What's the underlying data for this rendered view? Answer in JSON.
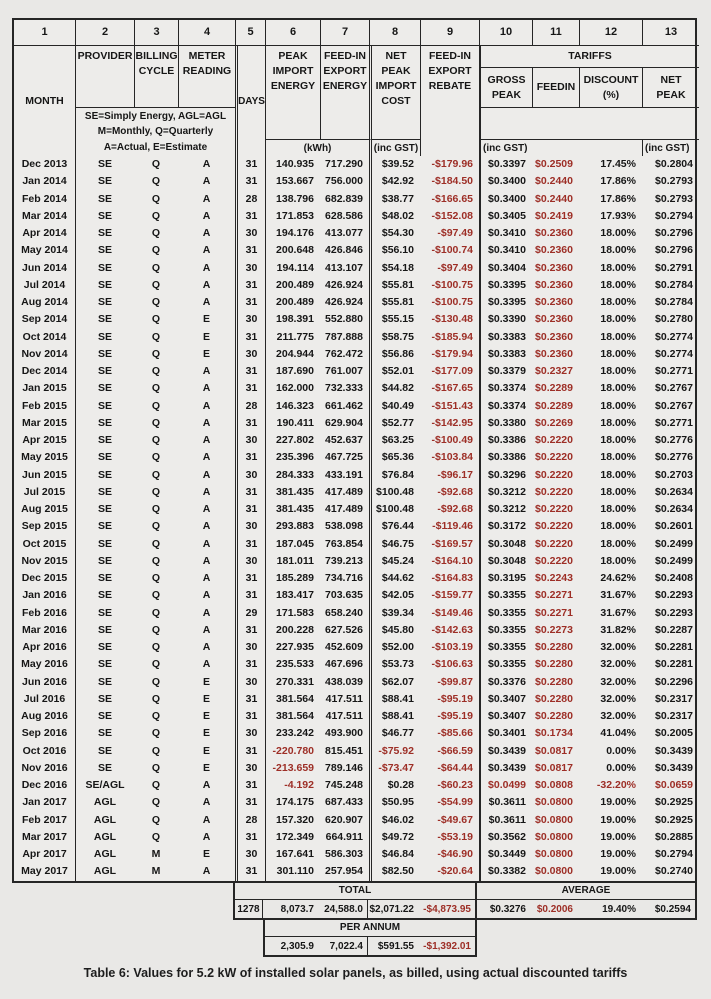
{
  "page": {
    "caption": "Table 6: Values for 5.2 kW of installed solar panels, as billed, using actual discounted tariffs"
  },
  "colors": {
    "red": "#9d2e26",
    "border": "#262626",
    "background": "#e9e8e6"
  },
  "header": {
    "numbers": [
      "1",
      "2",
      "3",
      "4",
      "5",
      "6",
      "7",
      "8",
      "9",
      "10",
      "11",
      "12",
      "13"
    ],
    "month": "MONTH",
    "provider": "PROVIDER",
    "billing_cycle": [
      "BILLING",
      "CYCLE"
    ],
    "meter_reading": [
      "METER",
      "READING"
    ],
    "days": "DAYS",
    "peak_import": [
      "PEAK",
      "IMPORT",
      "ENERGY"
    ],
    "feedin_export": [
      "FEED-IN",
      "EXPORT",
      "ENERGY"
    ],
    "net_cost": [
      "NET",
      "PEAK",
      "IMPORT",
      "COST"
    ],
    "rebate": [
      "FEED-IN",
      "EXPORT",
      "REBATE"
    ],
    "tariffs": "TARIFFS",
    "gross_peak": [
      "GROSS",
      "PEAK"
    ],
    "feedin": "FEEDIN",
    "discount": [
      "DISCOUNT",
      "(%)"
    ],
    "net_peak": [
      "NET",
      "PEAK"
    ],
    "legend": [
      "SE=Simply Energy, AGL=AGL",
      "M=Monthly, Q=Quarterly",
      "A=Actual, E=Estimate"
    ],
    "kwh_unit": "(kWh)",
    "gst_unit_import": "(inc GST)",
    "gst_unit_gross": "(inc GST)",
    "gst_unit_net": "(inc GST)"
  },
  "rows": [
    {
      "month": "Dec 2013",
      "provider": "SE",
      "cycle": "Q",
      "meter": "A",
      "days": "31",
      "import": "140.935",
      "export": "717.290",
      "cost": "$39.52",
      "rebate": "-$179.96",
      "gross": "$0.3397",
      "feedin": "$0.2509",
      "discount": "17.45%",
      "net": "$0.2804"
    },
    {
      "month": "Jan 2014",
      "provider": "SE",
      "cycle": "Q",
      "meter": "A",
      "days": "31",
      "import": "153.667",
      "export": "756.000",
      "cost": "$42.92",
      "rebate": "-$184.50",
      "gross": "$0.3400",
      "feedin": "$0.2440",
      "discount": "17.86%",
      "net": "$0.2793"
    },
    {
      "month": "Feb 2014",
      "provider": "SE",
      "cycle": "Q",
      "meter": "A",
      "days": "28",
      "import": "138.796",
      "export": "682.839",
      "cost": "$38.77",
      "rebate": "-$166.65",
      "gross": "$0.3400",
      "feedin": "$0.2440",
      "discount": "17.86%",
      "net": "$0.2793"
    },
    {
      "month": "Mar 2014",
      "provider": "SE",
      "cycle": "Q",
      "meter": "A",
      "days": "31",
      "import": "171.853",
      "export": "628.586",
      "cost": "$48.02",
      "rebate": "-$152.08",
      "gross": "$0.3405",
      "feedin": "$0.2419",
      "discount": "17.93%",
      "net": "$0.2794"
    },
    {
      "month": "Apr 2014",
      "provider": "SE",
      "cycle": "Q",
      "meter": "A",
      "days": "30",
      "import": "194.176",
      "export": "413.077",
      "cost": "$54.30",
      "rebate": "-$97.49",
      "gross": "$0.3410",
      "feedin": "$0.2360",
      "discount": "18.00%",
      "net": "$0.2796"
    },
    {
      "month": "May 2014",
      "provider": "SE",
      "cycle": "Q",
      "meter": "A",
      "days": "31",
      "import": "200.648",
      "export": "426.846",
      "cost": "$56.10",
      "rebate": "-$100.74",
      "gross": "$0.3410",
      "feedin": "$0.2360",
      "discount": "18.00%",
      "net": "$0.2796"
    },
    {
      "month": "Jun 2014",
      "provider": "SE",
      "cycle": "Q",
      "meter": "A",
      "days": "30",
      "import": "194.114",
      "export": "413.107",
      "cost": "$54.18",
      "rebate": "-$97.49",
      "gross": "$0.3404",
      "feedin": "$0.2360",
      "discount": "18.00%",
      "net": "$0.2791"
    },
    {
      "month": "Jul 2014",
      "provider": "SE",
      "cycle": "Q",
      "meter": "A",
      "days": "31",
      "import": "200.489",
      "export": "426.924",
      "cost": "$55.81",
      "rebate": "-$100.75",
      "gross": "$0.3395",
      "feedin": "$0.2360",
      "discount": "18.00%",
      "net": "$0.2784"
    },
    {
      "month": "Aug 2014",
      "provider": "SE",
      "cycle": "Q",
      "meter": "A",
      "days": "31",
      "import": "200.489",
      "export": "426.924",
      "cost": "$55.81",
      "rebate": "-$100.75",
      "gross": "$0.3395",
      "feedin": "$0.2360",
      "discount": "18.00%",
      "net": "$0.2784"
    },
    {
      "month": "Sep 2014",
      "provider": "SE",
      "cycle": "Q",
      "meter": "E",
      "days": "30",
      "import": "198.391",
      "export": "552.880",
      "cost": "$55.15",
      "rebate": "-$130.48",
      "gross": "$0.3390",
      "feedin": "$0.2360",
      "discount": "18.00%",
      "net": "$0.2780"
    },
    {
      "month": "Oct 2014",
      "provider": "SE",
      "cycle": "Q",
      "meter": "E",
      "days": "31",
      "import": "211.775",
      "export": "787.888",
      "cost": "$58.75",
      "rebate": "-$185.94",
      "gross": "$0.3383",
      "feedin": "$0.2360",
      "discount": "18.00%",
      "net": "$0.2774"
    },
    {
      "month": "Nov 2014",
      "provider": "SE",
      "cycle": "Q",
      "meter": "E",
      "days": "30",
      "import": "204.944",
      "export": "762.472",
      "cost": "$56.86",
      "rebate": "-$179.94",
      "gross": "$0.3383",
      "feedin": "$0.2360",
      "discount": "18.00%",
      "net": "$0.2774"
    },
    {
      "month": "Dec 2014",
      "provider": "SE",
      "cycle": "Q",
      "meter": "A",
      "days": "31",
      "import": "187.690",
      "export": "761.007",
      "cost": "$52.01",
      "rebate": "-$177.09",
      "gross": "$0.3379",
      "feedin": "$0.2327",
      "discount": "18.00%",
      "net": "$0.2771"
    },
    {
      "month": "Jan 2015",
      "provider": "SE",
      "cycle": "Q",
      "meter": "A",
      "days": "31",
      "import": "162.000",
      "export": "732.333",
      "cost": "$44.82",
      "rebate": "-$167.65",
      "gross": "$0.3374",
      "feedin": "$0.2289",
      "discount": "18.00%",
      "net": "$0.2767"
    },
    {
      "month": "Feb 2015",
      "provider": "SE",
      "cycle": "Q",
      "meter": "A",
      "days": "28",
      "import": "146.323",
      "export": "661.462",
      "cost": "$40.49",
      "rebate": "-$151.43",
      "gross": "$0.3374",
      "feedin": "$0.2289",
      "discount": "18.00%",
      "net": "$0.2767"
    },
    {
      "month": "Mar 2015",
      "provider": "SE",
      "cycle": "Q",
      "meter": "A",
      "days": "31",
      "import": "190.411",
      "export": "629.904",
      "cost": "$52.77",
      "rebate": "-$142.95",
      "gross": "$0.3380",
      "feedin": "$0.2269",
      "discount": "18.00%",
      "net": "$0.2771"
    },
    {
      "month": "Apr 2015",
      "provider": "SE",
      "cycle": "Q",
      "meter": "A",
      "days": "30",
      "import": "227.802",
      "export": "452.637",
      "cost": "$63.25",
      "rebate": "-$100.49",
      "gross": "$0.3386",
      "feedin": "$0.2220",
      "discount": "18.00%",
      "net": "$0.2776"
    },
    {
      "month": "May 2015",
      "provider": "SE",
      "cycle": "Q",
      "meter": "A",
      "days": "31",
      "import": "235.396",
      "export": "467.725",
      "cost": "$65.36",
      "rebate": "-$103.84",
      "gross": "$0.3386",
      "feedin": "$0.2220",
      "discount": "18.00%",
      "net": "$0.2776"
    },
    {
      "month": "Jun 2015",
      "provider": "SE",
      "cycle": "Q",
      "meter": "A",
      "days": "30",
      "import": "284.333",
      "export": "433.191",
      "cost": "$76.84",
      "rebate": "-$96.17",
      "gross": "$0.3296",
      "feedin": "$0.2220",
      "discount": "18.00%",
      "net": "$0.2703"
    },
    {
      "month": "Jul 2015",
      "provider": "SE",
      "cycle": "Q",
      "meter": "A",
      "days": "31",
      "import": "381.435",
      "export": "417.489",
      "cost": "$100.48",
      "rebate": "-$92.68",
      "gross": "$0.3212",
      "feedin": "$0.2220",
      "discount": "18.00%",
      "net": "$0.2634"
    },
    {
      "month": "Aug 2015",
      "provider": "SE",
      "cycle": "Q",
      "meter": "A",
      "days": "31",
      "import": "381.435",
      "export": "417.489",
      "cost": "$100.48",
      "rebate": "-$92.68",
      "gross": "$0.3212",
      "feedin": "$0.2220",
      "discount": "18.00%",
      "net": "$0.2634"
    },
    {
      "month": "Sep 2015",
      "provider": "SE",
      "cycle": "Q",
      "meter": "A",
      "days": "30",
      "import": "293.883",
      "export": "538.098",
      "cost": "$76.44",
      "rebate": "-$119.46",
      "gross": "$0.3172",
      "feedin": "$0.2220",
      "discount": "18.00%",
      "net": "$0.2601"
    },
    {
      "month": "Oct 2015",
      "provider": "SE",
      "cycle": "Q",
      "meter": "A",
      "days": "31",
      "import": "187.045",
      "export": "763.854",
      "cost": "$46.75",
      "rebate": "-$169.57",
      "gross": "$0.3048",
      "feedin": "$0.2220",
      "discount": "18.00%",
      "net": "$0.2499"
    },
    {
      "month": "Nov 2015",
      "provider": "SE",
      "cycle": "Q",
      "meter": "A",
      "days": "30",
      "import": "181.011",
      "export": "739.213",
      "cost": "$45.24",
      "rebate": "-$164.10",
      "gross": "$0.3048",
      "feedin": "$0.2220",
      "discount": "18.00%",
      "net": "$0.2499"
    },
    {
      "month": "Dec 2015",
      "provider": "SE",
      "cycle": "Q",
      "meter": "A",
      "days": "31",
      "import": "185.289",
      "export": "734.716",
      "cost": "$44.62",
      "rebate": "-$164.83",
      "gross": "$0.3195",
      "feedin": "$0.2243",
      "discount": "24.62%",
      "net": "$0.2408"
    },
    {
      "month": "Jan 2016",
      "provider": "SE",
      "cycle": "Q",
      "meter": "A",
      "days": "31",
      "import": "183.417",
      "export": "703.635",
      "cost": "$42.05",
      "rebate": "-$159.77",
      "gross": "$0.3355",
      "feedin": "$0.2271",
      "discount": "31.67%",
      "net": "$0.2293"
    },
    {
      "month": "Feb 2016",
      "provider": "SE",
      "cycle": "Q",
      "meter": "A",
      "days": "29",
      "import": "171.583",
      "export": "658.240",
      "cost": "$39.34",
      "rebate": "-$149.46",
      "gross": "$0.3355",
      "feedin": "$0.2271",
      "discount": "31.67%",
      "net": "$0.2293"
    },
    {
      "month": "Mar 2016",
      "provider": "SE",
      "cycle": "Q",
      "meter": "A",
      "days": "31",
      "import": "200.228",
      "export": "627.526",
      "cost": "$45.80",
      "rebate": "-$142.63",
      "gross": "$0.3355",
      "feedin": "$0.2273",
      "discount": "31.82%",
      "net": "$0.2287"
    },
    {
      "month": "Apr 2016",
      "provider": "SE",
      "cycle": "Q",
      "meter": "A",
      "days": "30",
      "import": "227.935",
      "export": "452.609",
      "cost": "$52.00",
      "rebate": "-$103.19",
      "gross": "$0.3355",
      "feedin": "$0.2280",
      "discount": "32.00%",
      "net": "$0.2281"
    },
    {
      "month": "May 2016",
      "provider": "SE",
      "cycle": "Q",
      "meter": "A",
      "days": "31",
      "import": "235.533",
      "export": "467.696",
      "cost": "$53.73",
      "rebate": "-$106.63",
      "gross": "$0.3355",
      "feedin": "$0.2280",
      "discount": "32.00%",
      "net": "$0.2281"
    },
    {
      "month": "Jun 2016",
      "provider": "SE",
      "cycle": "Q",
      "meter": "E",
      "days": "30",
      "import": "270.331",
      "export": "438.039",
      "cost": "$62.07",
      "rebate": "-$99.87",
      "gross": "$0.3376",
      "feedin": "$0.2280",
      "discount": "32.00%",
      "net": "$0.2296"
    },
    {
      "month": "Jul 2016",
      "provider": "SE",
      "cycle": "Q",
      "meter": "E",
      "days": "31",
      "import": "381.564",
      "export": "417.511",
      "cost": "$88.41",
      "rebate": "-$95.19",
      "gross": "$0.3407",
      "feedin": "$0.2280",
      "discount": "32.00%",
      "net": "$0.2317"
    },
    {
      "month": "Aug 2016",
      "provider": "SE",
      "cycle": "Q",
      "meter": "E",
      "days": "31",
      "import": "381.564",
      "export": "417.511",
      "cost": "$88.41",
      "rebate": "-$95.19",
      "gross": "$0.3407",
      "feedin": "$0.2280",
      "discount": "32.00%",
      "net": "$0.2317"
    },
    {
      "month": "Sep 2016",
      "provider": "SE",
      "cycle": "Q",
      "meter": "E",
      "days": "30",
      "import": "233.242",
      "export": "493.900",
      "cost": "$46.77",
      "rebate": "-$85.66",
      "gross": "$0.3401",
      "feedin": "$0.1734",
      "discount": "41.04%",
      "net": "$0.2005"
    },
    {
      "month": "Oct 2016",
      "provider": "SE",
      "cycle": "Q",
      "meter": "E",
      "days": "31",
      "import": "-220.780",
      "export": "815.451",
      "cost": "-$75.92",
      "rebate": "-$66.59",
      "gross": "$0.3439",
      "feedin": "$0.0817",
      "discount": "0.00%",
      "net": "$0.3439"
    },
    {
      "month": "Nov 2016",
      "provider": "SE",
      "cycle": "Q",
      "meter": "E",
      "days": "30",
      "import": "-213.659",
      "export": "789.146",
      "cost": "-$73.47",
      "rebate": "-$64.44",
      "gross": "$0.3439",
      "feedin": "$0.0817",
      "discount": "0.00%",
      "net": "$0.3439"
    },
    {
      "month": "Dec 2016",
      "provider": "SE/AGL",
      "cycle": "Q",
      "meter": "A",
      "days": "31",
      "import": "-4.192",
      "export": "745.248",
      "cost": "$0.28",
      "rebate": "-$60.23",
      "gross": "$0.0499",
      "feedin": "$0.0808",
      "discount": "-32.20%",
      "net": "$0.0659",
      "extra_red": [
        "gross",
        "net"
      ]
    },
    {
      "month": "Jan 2017",
      "provider": "AGL",
      "cycle": "Q",
      "meter": "A",
      "days": "31",
      "import": "174.175",
      "export": "687.433",
      "cost": "$50.95",
      "rebate": "-$54.99",
      "gross": "$0.3611",
      "feedin": "$0.0800",
      "discount": "19.00%",
      "net": "$0.2925"
    },
    {
      "month": "Feb 2017",
      "provider": "AGL",
      "cycle": "Q",
      "meter": "A",
      "days": "28",
      "import": "157.320",
      "export": "620.907",
      "cost": "$46.02",
      "rebate": "-$49.67",
      "gross": "$0.3611",
      "feedin": "$0.0800",
      "discount": "19.00%",
      "net": "$0.2925"
    },
    {
      "month": "Mar 2017",
      "provider": "AGL",
      "cycle": "Q",
      "meter": "A",
      "days": "31",
      "import": "172.349",
      "export": "664.911",
      "cost": "$49.72",
      "rebate": "-$53.19",
      "gross": "$0.3562",
      "feedin": "$0.0800",
      "discount": "19.00%",
      "net": "$0.2885"
    },
    {
      "month": "Apr 2017",
      "provider": "AGL",
      "cycle": "M",
      "meter": "E",
      "days": "30",
      "import": "167.641",
      "export": "586.303",
      "cost": "$46.84",
      "rebate": "-$46.90",
      "gross": "$0.3449",
      "feedin": "$0.0800",
      "discount": "19.00%",
      "net": "$0.2794"
    },
    {
      "month": "May 2017",
      "provider": "AGL",
      "cycle": "M",
      "meter": "A",
      "days": "31",
      "import": "301.110",
      "export": "257.954",
      "cost": "$82.50",
      "rebate": "-$20.64",
      "gross": "$0.3382",
      "feedin": "$0.0800",
      "discount": "19.00%",
      "net": "$0.2740"
    }
  ],
  "totals": {
    "total_label": "TOTAL",
    "average_label": "AVERAGE",
    "per_annum_label": "PER ANNUM",
    "days": "1278",
    "import": "8,073.7",
    "export": "24,588.0",
    "cost": "$2,071.22",
    "rebate": "-$4,873.95",
    "gross": "$0.3276",
    "feedin": "$0.2006",
    "discount": "19.40%",
    "net": "$0.2594",
    "pa_import": "2,305.9",
    "pa_export": "7,022.4",
    "pa_cost": "$591.55",
    "pa_rebate": "-$1,392.01"
  }
}
